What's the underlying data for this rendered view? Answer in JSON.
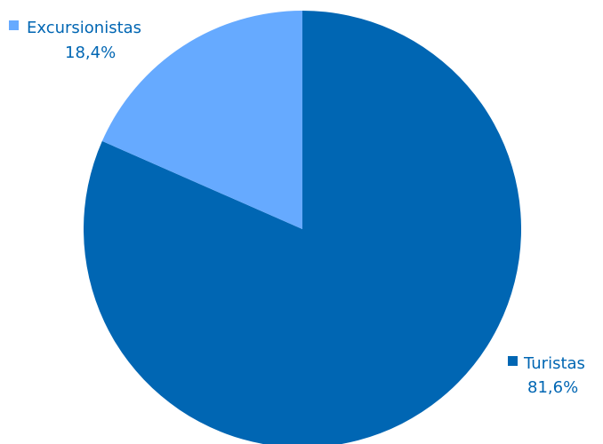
{
  "chart_data": {
    "type": "pie",
    "title": "",
    "slices": [
      {
        "label": "Excursionistas",
        "value": 18.4,
        "display": "18,4%",
        "color": "#66aaff"
      },
      {
        "label": "Turistas",
        "value": 81.6,
        "display": "81,6%",
        "color": "#0066b3"
      }
    ],
    "legend": "labels beside slices",
    "label_color": "#0066b3"
  }
}
